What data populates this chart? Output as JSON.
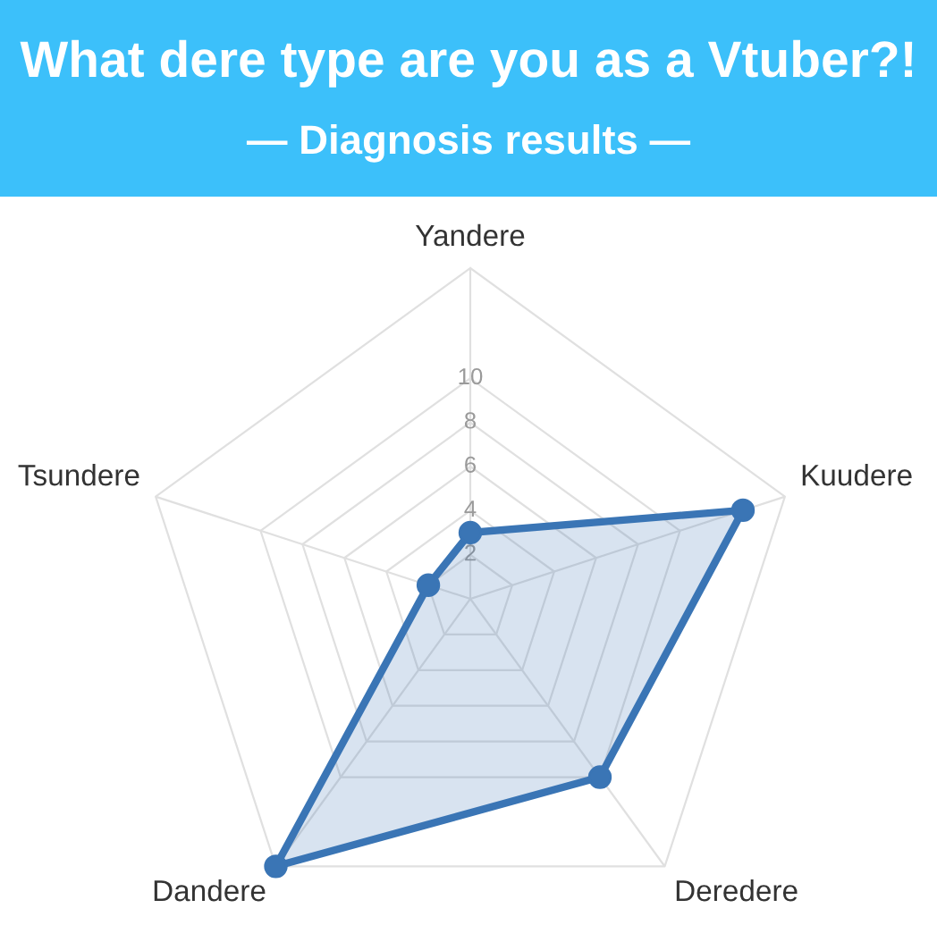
{
  "chart_data": {
    "type": "radar",
    "title": "What dere type are you as a Vtuber?!",
    "subtitle": "— Diagnosis results —",
    "categories": [
      "Yandere",
      "Kuudere",
      "Deredere",
      "Dandere",
      "Tsundere"
    ],
    "series": [
      {
        "color": "#3a75b5",
        "values": [
          3,
          13,
          10,
          15,
          2
        ]
      }
    ],
    "ylim": [
      0,
      15
    ],
    "yticks": [
      2,
      4,
      6,
      8,
      10
    ],
    "grid": true,
    "marker": "circle"
  }
}
